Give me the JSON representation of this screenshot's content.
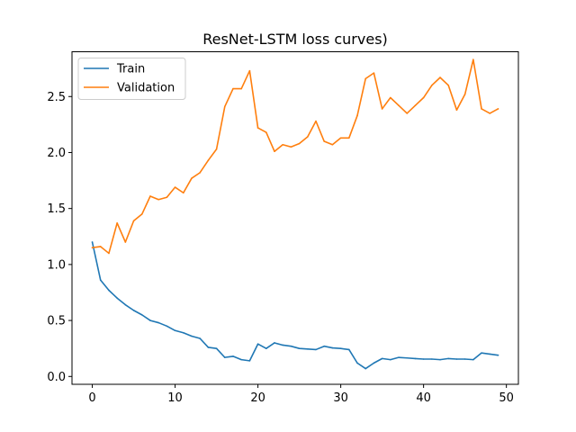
{
  "chart_data": {
    "type": "line",
    "title": "ResNet-LSTM loss curves)",
    "xlabel": "",
    "ylabel": "",
    "xlim": [
      -2.45,
      51.45
    ],
    "ylim": [
      -0.07,
      2.9
    ],
    "xticks": [
      0,
      10,
      20,
      30,
      40,
      50
    ],
    "yticks": [
      0.0,
      0.5,
      1.0,
      1.5,
      2.0,
      2.5
    ],
    "xtick_labels": [
      "0",
      "10",
      "20",
      "30",
      "40",
      "50"
    ],
    "ytick_labels": [
      "0.0",
      "0.5",
      "1.0",
      "1.5",
      "2.0",
      "2.5"
    ],
    "legend_position": "top-left",
    "grid": false,
    "x": [
      0,
      1,
      2,
      3,
      4,
      5,
      6,
      7,
      8,
      9,
      10,
      11,
      12,
      13,
      14,
      15,
      16,
      17,
      18,
      19,
      20,
      21,
      22,
      23,
      24,
      25,
      26,
      27,
      28,
      29,
      30,
      31,
      32,
      33,
      34,
      35,
      36,
      37,
      38,
      39,
      40,
      41,
      42,
      43,
      44,
      45,
      46,
      47,
      48,
      49
    ],
    "series": [
      {
        "name": "Train",
        "color": "#1f77b4",
        "values": [
          1.2,
          0.86,
          0.77,
          0.7,
          0.64,
          0.59,
          0.55,
          0.5,
          0.48,
          0.45,
          0.41,
          0.39,
          0.36,
          0.34,
          0.26,
          0.25,
          0.17,
          0.18,
          0.15,
          0.14,
          0.29,
          0.25,
          0.3,
          0.28,
          0.27,
          0.25,
          0.245,
          0.24,
          0.27,
          0.255,
          0.25,
          0.24,
          0.12,
          0.07,
          0.12,
          0.16,
          0.15,
          0.17,
          0.165,
          0.16,
          0.155,
          0.155,
          0.15,
          0.16,
          0.155,
          0.155,
          0.15,
          0.21,
          0.2,
          0.19
        ]
      },
      {
        "name": "Validation",
        "color": "#ff7f0e",
        "values": [
          1.15,
          1.16,
          1.1,
          1.37,
          1.2,
          1.39,
          1.45,
          1.61,
          1.58,
          1.6,
          1.69,
          1.64,
          1.77,
          1.82,
          1.93,
          2.03,
          2.41,
          2.57,
          2.57,
          2.73,
          2.22,
          2.18,
          2.01,
          2.07,
          2.05,
          2.08,
          2.14,
          2.28,
          2.1,
          2.07,
          2.13,
          2.13,
          2.33,
          2.66,
          2.71,
          2.39,
          2.49,
          2.42,
          2.35,
          2.42,
          2.49,
          2.6,
          2.67,
          2.6,
          2.38,
          2.52,
          2.83,
          2.39,
          2.35,
          2.39
        ]
      }
    ]
  }
}
